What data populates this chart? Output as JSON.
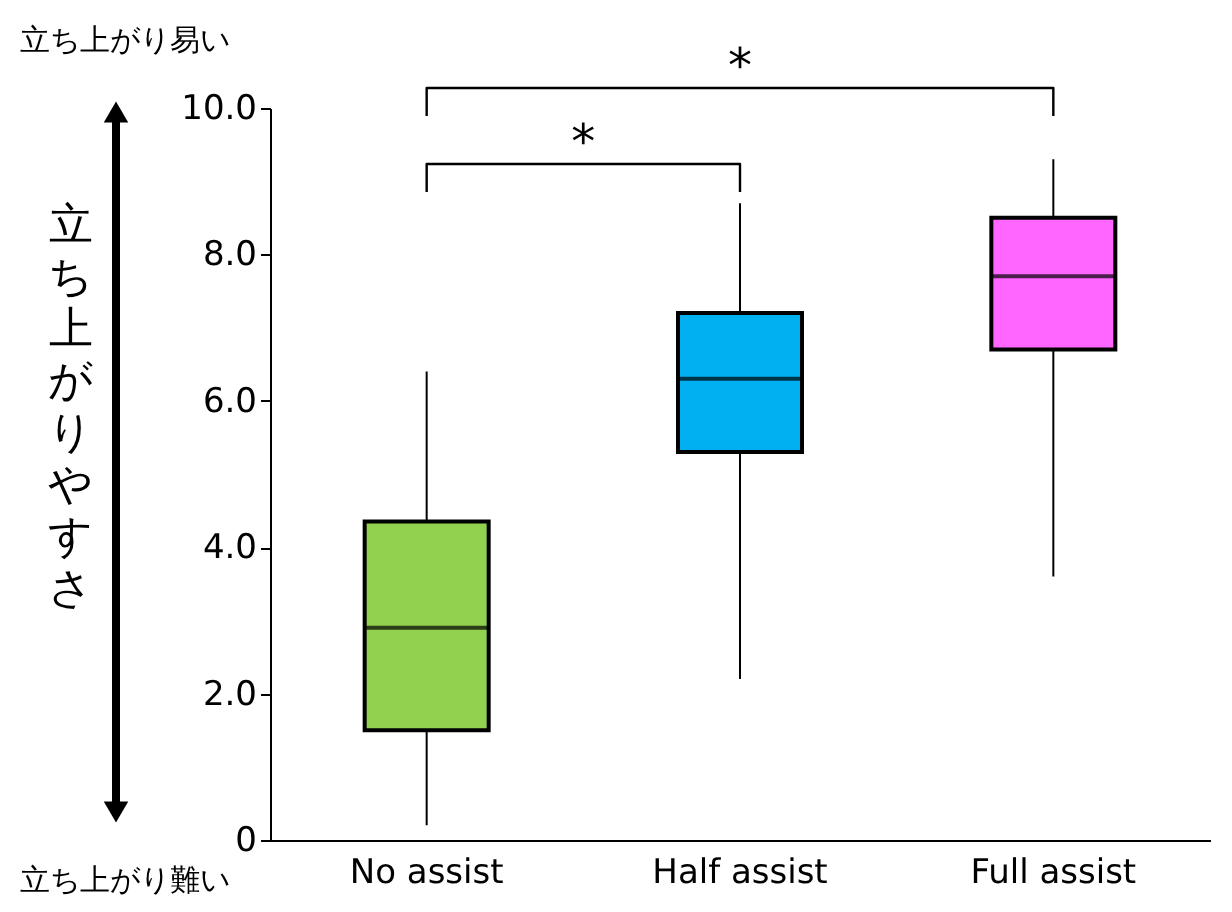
{
  "chart_data": {
    "type": "box",
    "categories": [
      "No assist",
      "Half assist",
      "Full assist"
    ],
    "ylabel": "立ち上がりやすさ",
    "ylim": [
      0,
      10
    ],
    "yticks": [
      0,
      {
        "value": 2,
        "label": "2.0"
      },
      {
        "value": 4,
        "label": "4.0"
      },
      {
        "value": 6,
        "label": "6.0"
      },
      {
        "value": 8,
        "label": "8.0"
      },
      {
        "value": 10,
        "label": "10.0"
      }
    ],
    "colors": [
      "#92d050",
      "#00b0f0",
      "#ff66ff"
    ],
    "boxes": [
      {
        "low": 0.2,
        "q1": 1.5,
        "median": 2.9,
        "q3": 4.35,
        "high": 6.4
      },
      {
        "low": 2.2,
        "q1": 5.3,
        "median": 6.3,
        "q3": 7.2,
        "high": 8.7
      },
      {
        "low": 3.6,
        "q1": 6.7,
        "median": 7.7,
        "q3": 8.5,
        "high": 9.3
      }
    ],
    "grid": false,
    "annotations": [
      "*",
      "*",
      "立ち上がり易い",
      "立ち上がり難い"
    ]
  }
}
